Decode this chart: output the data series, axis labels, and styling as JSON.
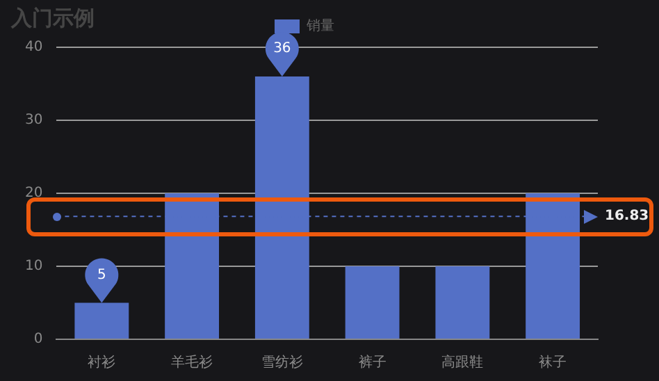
{
  "chart_data": {
    "type": "bar",
    "title": "入门示例",
    "categories": [
      "衬衫",
      "羊毛衫",
      "雪纺衫",
      "裤子",
      "高跟鞋",
      "袜子"
    ],
    "series": [
      {
        "name": "销量",
        "color": "#5470c6",
        "values": [
          5,
          20,
          36,
          10,
          10,
          20
        ]
      }
    ],
    "ylim": [
      0,
      40
    ],
    "yticks": [
      0,
      10,
      20,
      30,
      40
    ],
    "grid": "y",
    "legend": "top",
    "annotations": [
      {
        "text": "36",
        "x": "雪纺衫",
        "y": 36
      },
      {
        "text": "5",
        "x": "衬衫",
        "y": 5
      }
    ],
    "ref_lines": [
      {
        "axis": "y",
        "value": 16.83,
        "label": "16.83",
        "color": "#5470c6",
        "line_style": "dashed"
      }
    ]
  }
}
